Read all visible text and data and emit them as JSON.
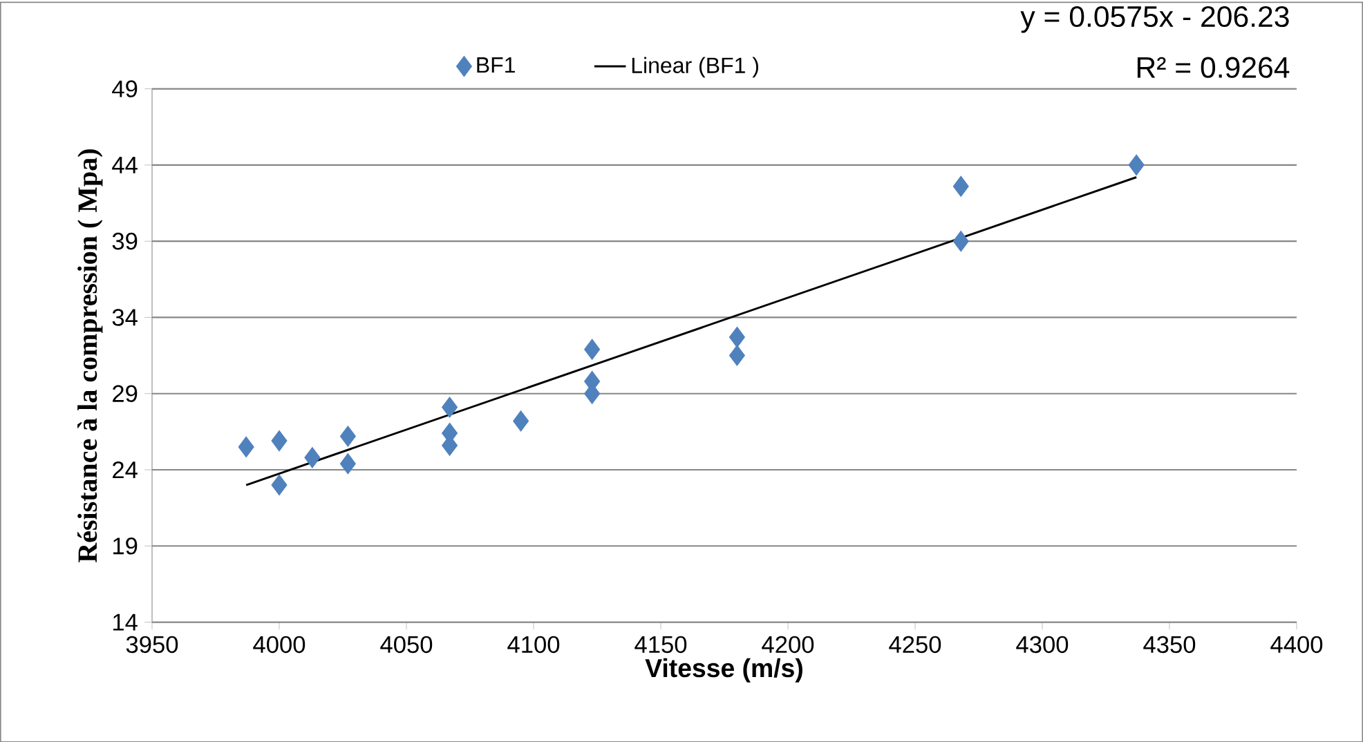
{
  "chart_data": {
    "type": "scatter",
    "xlabel": "Vitesse (m/s)",
    "ylabel": "Résistance à la compression ( Mpa)",
    "xlim": [
      3950,
      4400
    ],
    "xticks": [
      3950,
      4000,
      4050,
      4100,
      4150,
      4200,
      4250,
      4300,
      4350,
      4400
    ],
    "ylim": [
      14,
      49
    ],
    "yticks": [
      14,
      19,
      24,
      29,
      34,
      39,
      44,
      49
    ],
    "grid": "y",
    "legend": "top",
    "marker": "diamond",
    "annotations": [
      "y = 0.0575x - 206.23",
      "R² = 0.9264"
    ],
    "series": [
      {
        "name": "BF1",
        "color": "#4f81bd",
        "x": [
          3987,
          4000,
          4000,
          4013,
          4027,
          4027,
          4067,
          4067,
          4067,
          4095,
          4123,
          4123,
          4123,
          4180,
          4180,
          4268,
          4268,
          4337
        ],
        "values": [
          25.5,
          25.9,
          23.0,
          24.8,
          26.2,
          24.4,
          28.1,
          26.4,
          25.6,
          27.2,
          31.9,
          29.8,
          29.0,
          32.7,
          31.5,
          42.6,
          39.0,
          44.0
        ]
      },
      {
        "name": "Linear (BF1 )",
        "type": "line",
        "color": "#000000",
        "marker": "none",
        "line_style": "solid",
        "x": [
          3987,
          4337
        ],
        "values": [
          23.0,
          43.2
        ]
      }
    ]
  }
}
